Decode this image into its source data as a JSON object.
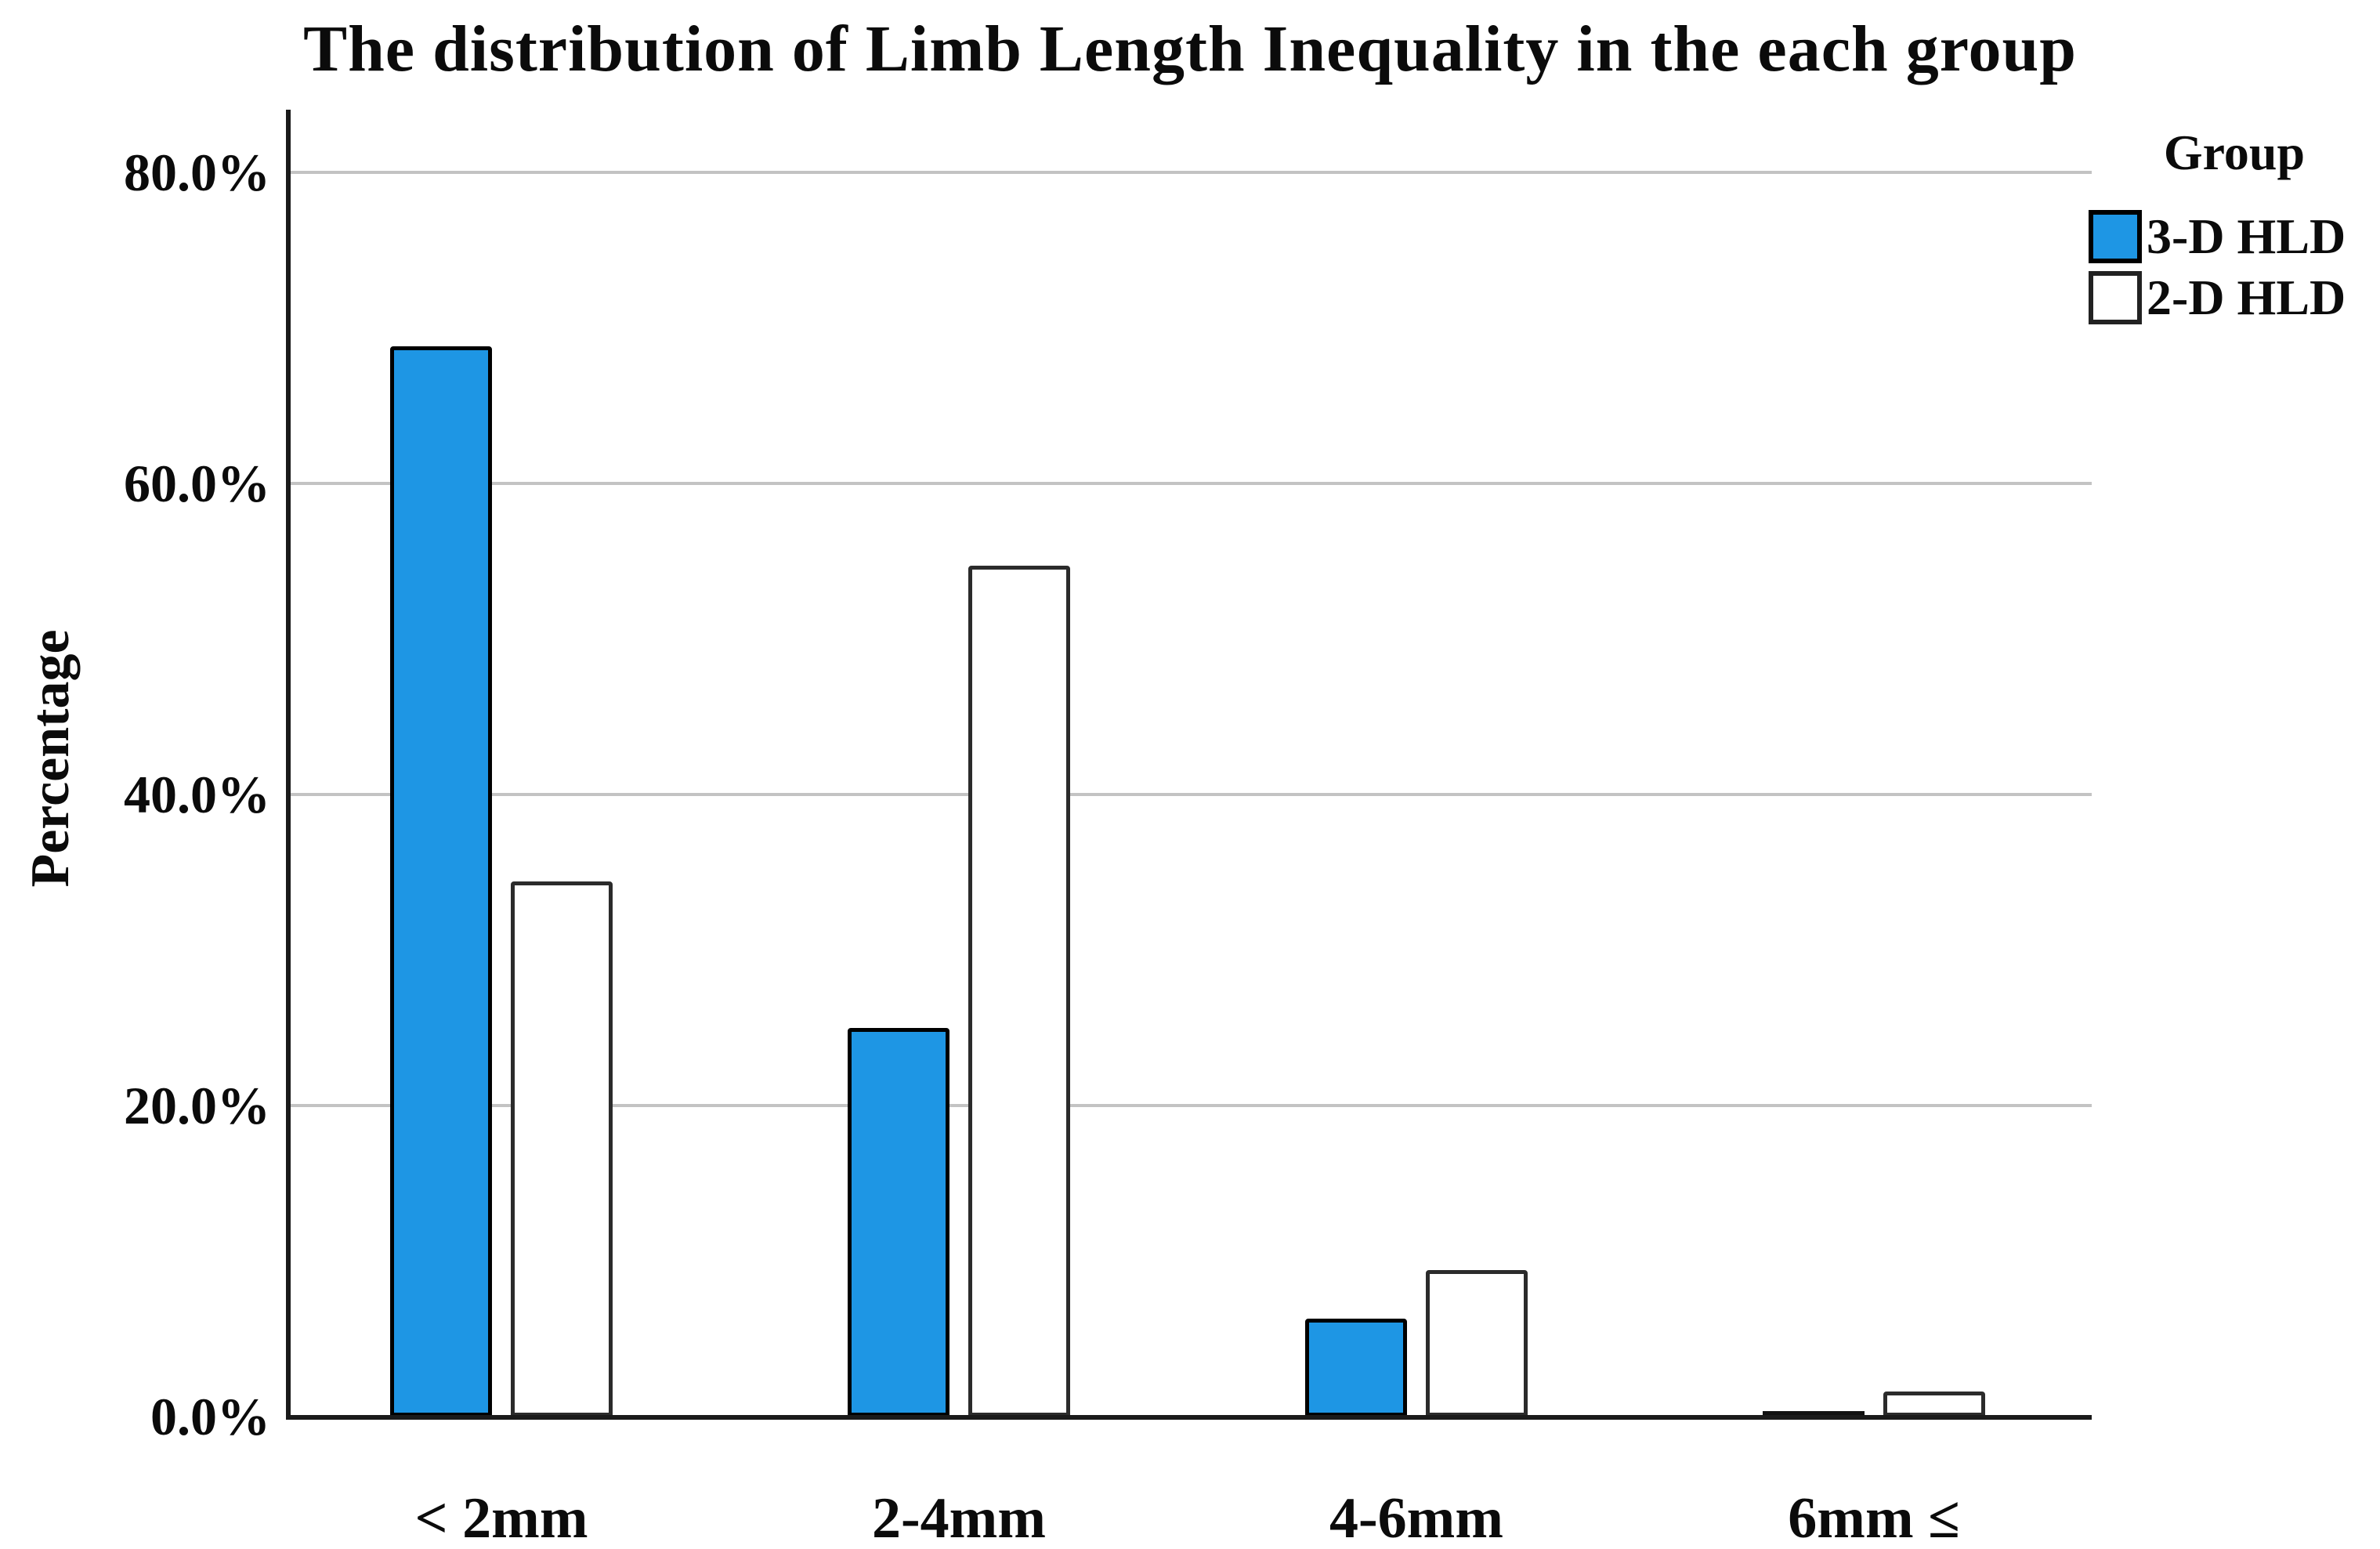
{
  "chart_data": {
    "type": "bar",
    "title": "The distribution of Limb Length Inequality in the each group",
    "ylabel": "Percentage",
    "xlabel": "",
    "legend_title": "Group",
    "legend_position": "top-right",
    "grid": true,
    "categories": [
      "< 2mm",
      "2-4mm",
      "4-6mm",
      "6mm ≤"
    ],
    "series": [
      {
        "name": "3-D HLD",
        "fill": "#1e96e4",
        "border": "#000000",
        "values": [
          68.8,
          25.0,
          6.3,
          0.0
        ]
      },
      {
        "name": "2-D HLD",
        "fill": "#ffffff",
        "border": "#2b2b2b",
        "values": [
          34.4,
          54.7,
          9.4,
          1.6
        ]
      }
    ],
    "y_ticks": [
      {
        "label": "80.0%",
        "value": 80
      },
      {
        "label": "60.0%",
        "value": 60
      },
      {
        "label": "40.0%",
        "value": 40
      },
      {
        "label": "20.0%",
        "value": 20
      },
      {
        "label": "0.0%",
        "value": 0
      }
    ],
    "ylim": [
      0,
      80
    ],
    "colors": {
      "gridline": "#c3c3c3",
      "axis": "#1a1a1a",
      "background": "#ffffff",
      "text": "#0b0b0b"
    }
  }
}
